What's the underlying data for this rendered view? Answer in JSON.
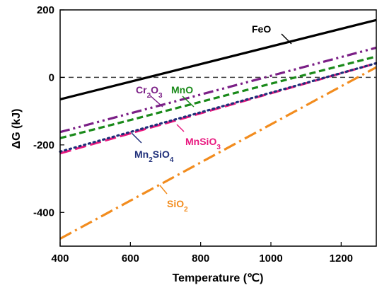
{
  "chart_data": {
    "type": "line",
    "xlabel": "Temperature (℃)",
    "ylabel": "ΔG (kJ)",
    "xlim": [
      400,
      1300
    ],
    "ylim": [
      -500,
      200
    ],
    "xticks": [
      400,
      600,
      800,
      1000,
      1200
    ],
    "yticks": [
      -400,
      -200,
      0,
      200
    ],
    "grid": false,
    "reference_line": {
      "y": 0,
      "style": "dashed",
      "color": "#444444"
    },
    "series": [
      {
        "id": "feo",
        "label": "FeO",
        "color": "#000000",
        "dash": "solid",
        "x": [
          400,
          1300
        ],
        "y": [
          -65,
          170
        ]
      },
      {
        "id": "cr2o3",
        "label_parts": [
          "Cr",
          "2",
          "O",
          "3"
        ],
        "color": "#7B1F86",
        "dash": "dashdotdot",
        "x": [
          400,
          1300
        ],
        "y": [
          -162,
          88
        ]
      },
      {
        "id": "mno",
        "label": "MnO",
        "color": "#1A8A1A",
        "dash": "dash",
        "x": [
          400,
          1300
        ],
        "y": [
          -180,
          62
        ]
      },
      {
        "id": "mnsio3",
        "label_parts": [
          "MnSiO",
          "3"
        ],
        "color": "#E8197F",
        "dash": "longdash",
        "x": [
          400,
          1300
        ],
        "y": [
          -225,
          42
        ]
      },
      {
        "id": "mn2sio4",
        "label_parts": [
          "Mn",
          "2",
          "SiO",
          "4"
        ],
        "color": "#1F2F7A",
        "dash": "dot",
        "x": [
          400,
          1300
        ],
        "y": [
          -220,
          42
        ]
      },
      {
        "id": "sio2",
        "label_parts": [
          "SiO",
          "2"
        ],
        "color": "#F28C1E",
        "dash": "dashdot",
        "x": [
          400,
          1300
        ],
        "y": [
          -478,
          30
        ]
      }
    ]
  }
}
